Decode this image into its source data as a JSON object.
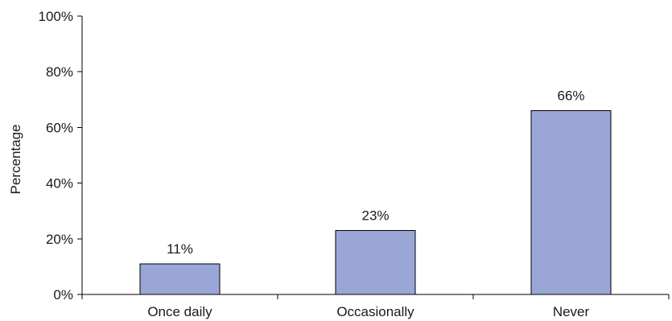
{
  "chart_data": {
    "type": "bar",
    "title": "",
    "xlabel": "",
    "ylabel": "Percentage",
    "categories": [
      "Once daily",
      "Occasionally",
      "Never"
    ],
    "values": [
      11,
      23,
      66
    ],
    "data_labels": [
      "11%",
      "23%",
      "66%"
    ],
    "ylim": [
      0,
      100
    ],
    "y_ticks": [
      0,
      20,
      40,
      60,
      80,
      100
    ],
    "y_tick_labels": [
      "0%",
      "20%",
      "40%",
      "60%",
      "80%",
      "100%"
    ],
    "grid": false,
    "legend": "none",
    "bar_color": "#9aa6d6"
  }
}
